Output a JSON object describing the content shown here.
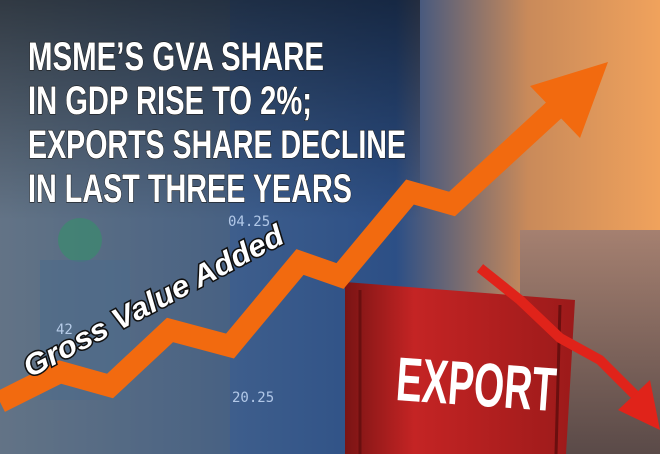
{
  "headline": {
    "lines": [
      "MSME’S GVA SHARE",
      "IN GDP RISE TO 2%;",
      "EXPORTS SHARE DECLINE",
      "IN LAST THREE YEARS"
    ]
  },
  "arrow_label": "Gross Value Added",
  "container_label": "EXPORT",
  "background_numbers": [
    "04.25",
    "20.25",
    "42"
  ]
}
